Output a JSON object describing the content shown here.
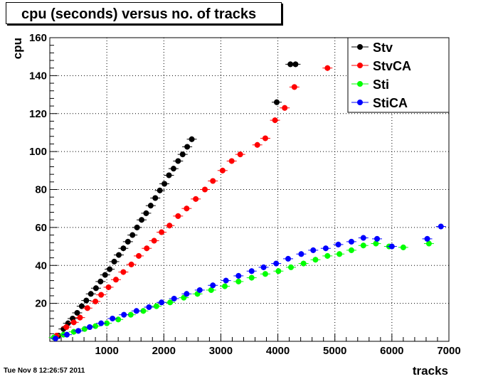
{
  "chart_data": {
    "type": "scatter",
    "title": "cpu (seconds) versus no. of tracks",
    "xlabel": "tracks",
    "ylabel": "cpu",
    "xlim": [
      0,
      7000
    ],
    "ylim": [
      0,
      160
    ],
    "x_ticks": [
      1000,
      2000,
      3000,
      4000,
      5000,
      6000,
      7000
    ],
    "y_ticks": [
      20,
      40,
      60,
      80,
      100,
      120,
      140,
      160
    ],
    "grid": true,
    "legend_position": "top-right",
    "series": [
      {
        "name": "Stv",
        "color": "#000000",
        "points": [
          [
            150,
            3
          ],
          [
            240,
            6.5
          ],
          [
            320,
            9.5
          ],
          [
            400,
            12
          ],
          [
            480,
            15
          ],
          [
            560,
            18.5
          ],
          [
            640,
            21.5
          ],
          [
            720,
            25
          ],
          [
            810,
            28
          ],
          [
            890,
            31.5
          ],
          [
            970,
            35
          ],
          [
            1050,
            38
          ],
          [
            1130,
            42
          ],
          [
            1210,
            45.5
          ],
          [
            1290,
            49
          ],
          [
            1370,
            52.5
          ],
          [
            1450,
            56
          ],
          [
            1530,
            60
          ],
          [
            1610,
            64
          ],
          [
            1690,
            67.5
          ],
          [
            1770,
            71.5
          ],
          [
            1850,
            75.5
          ],
          [
            1930,
            79.5
          ],
          [
            2010,
            83
          ],
          [
            2090,
            87.5
          ],
          [
            2170,
            91
          ],
          [
            2250,
            95
          ],
          [
            2330,
            98.5
          ],
          [
            2410,
            102.5
          ],
          [
            2490,
            106.5
          ],
          [
            3980,
            126
          ],
          [
            4220,
            146
          ],
          [
            4310,
            146
          ]
        ]
      },
      {
        "name": "StvCA",
        "color": "#ff0000",
        "points": [
          [
            120,
            3
          ],
          [
            290,
            7.5
          ],
          [
            420,
            10
          ],
          [
            530,
            12.5
          ],
          [
            660,
            17.5
          ],
          [
            800,
            21
          ],
          [
            900,
            24.5
          ],
          [
            1030,
            28.5
          ],
          [
            1160,
            32.5
          ],
          [
            1290,
            36.5
          ],
          [
            1430,
            40.5
          ],
          [
            1560,
            45
          ],
          [
            1700,
            49
          ],
          [
            1830,
            53
          ],
          [
            1960,
            57.5
          ],
          [
            2100,
            61
          ],
          [
            2250,
            66
          ],
          [
            2400,
            70
          ],
          [
            2560,
            75
          ],
          [
            2720,
            80
          ],
          [
            2860,
            84.5
          ],
          [
            3030,
            90
          ],
          [
            3190,
            95
          ],
          [
            3340,
            98.5
          ],
          [
            3640,
            103.5
          ],
          [
            3780,
            107
          ],
          [
            3950,
            116.5
          ],
          [
            4120,
            123
          ],
          [
            4290,
            134
          ],
          [
            4870,
            144
          ]
        ]
      },
      {
        "name": "Sti",
        "color": "#00ff00",
        "points": [
          [
            70,
            2
          ],
          [
            240,
            3.5
          ],
          [
            420,
            5
          ],
          [
            610,
            6.5
          ],
          [
            800,
            8
          ],
          [
            1000,
            9.5
          ],
          [
            1200,
            11.5
          ],
          [
            1420,
            14
          ],
          [
            1640,
            16
          ],
          [
            1870,
            18.5
          ],
          [
            2110,
            20.5
          ],
          [
            2350,
            23
          ],
          [
            2590,
            25
          ],
          [
            2830,
            27
          ],
          [
            3070,
            29
          ],
          [
            3310,
            31.5
          ],
          [
            3540,
            33.5
          ],
          [
            3780,
            35.5
          ],
          [
            4010,
            37
          ],
          [
            4230,
            39
          ],
          [
            4450,
            41
          ],
          [
            4660,
            43
          ],
          [
            4870,
            45
          ],
          [
            5080,
            46
          ],
          [
            5290,
            48
          ],
          [
            5500,
            50.5
          ],
          [
            5720,
            51.5
          ],
          [
            5950,
            50
          ],
          [
            6200,
            49.5
          ],
          [
            6650,
            51.5
          ]
        ]
      },
      {
        "name": "StiCA",
        "color": "#0000ff",
        "points": [
          [
            100,
            1.5
          ],
          [
            300,
            3.5
          ],
          [
            500,
            5.5
          ],
          [
            700,
            7.5
          ],
          [
            900,
            9.5
          ],
          [
            1100,
            12
          ],
          [
            1300,
            14
          ],
          [
            1520,
            16
          ],
          [
            1740,
            18
          ],
          [
            1960,
            20.5
          ],
          [
            2180,
            22.5
          ],
          [
            2400,
            25
          ],
          [
            2630,
            27
          ],
          [
            2860,
            29.5
          ],
          [
            3090,
            32
          ],
          [
            3310,
            34.5
          ],
          [
            3540,
            37
          ],
          [
            3750,
            39
          ],
          [
            3970,
            41
          ],
          [
            4180,
            43.5
          ],
          [
            4410,
            46
          ],
          [
            4620,
            48
          ],
          [
            4840,
            49
          ],
          [
            5060,
            51
          ],
          [
            5290,
            52.5
          ],
          [
            5500,
            54.5
          ],
          [
            5740,
            54
          ],
          [
            6000,
            50
          ],
          [
            6620,
            54
          ],
          [
            6860,
            60.5
          ]
        ]
      }
    ]
  },
  "footer": {
    "timestamp": "Tue Nov  8 12:26:57 2011"
  }
}
